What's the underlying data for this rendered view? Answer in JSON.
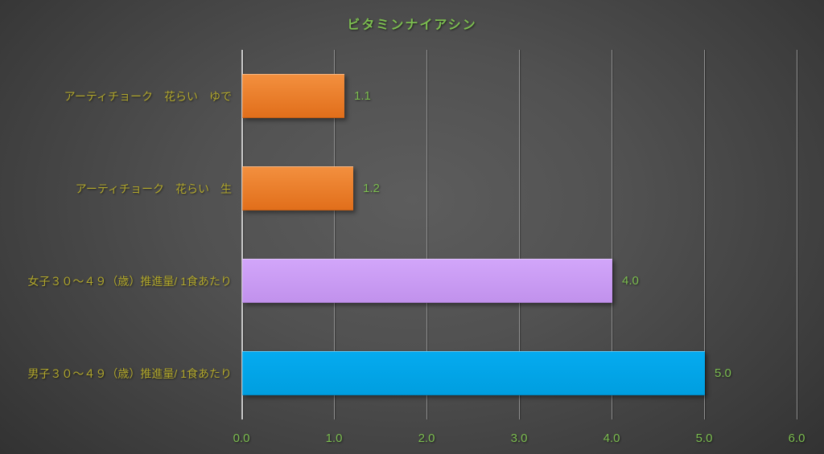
{
  "chart_data": {
    "type": "bar",
    "orientation": "horizontal",
    "title": "ビタミンナイアシン",
    "categories": [
      "アーティチョーク　花らい　ゆで",
      "アーティチョーク　花らい　生",
      "女子３０～４９（歳）推進量/ 1食あたり",
      "男子３０～４９（歳）推進量/ 1食あたり"
    ],
    "values": [
      1.1,
      1.2,
      4.0,
      5.0
    ],
    "value_labels": [
      "1.1",
      "1.2",
      "4.0",
      "5.0"
    ],
    "xlabel": "",
    "ylabel": "",
    "xlim": [
      0,
      6
    ],
    "x_ticks": [
      "0.0",
      "1.0",
      "2.0",
      "3.0",
      "4.0",
      "5.0",
      "6.0"
    ],
    "grid": true,
    "legend": false
  },
  "styles": {
    "title_color": "#7CBE4F",
    "value_label_color": "#7CBE4F",
    "tick_label_color": "#7CBE4F",
    "category_label_color": "#B2A82C",
    "gridline_color": "#8F8F8F",
    "axis_line_color": "#C8C8C8",
    "bar_gradients": [
      [
        "#F3903F",
        "#E16E1A"
      ],
      [
        "#F3903F",
        "#E16E1A"
      ],
      [
        "#D2A6FA",
        "#C191EC"
      ],
      [
        "#05ABF0",
        "#009EDF"
      ]
    ]
  }
}
